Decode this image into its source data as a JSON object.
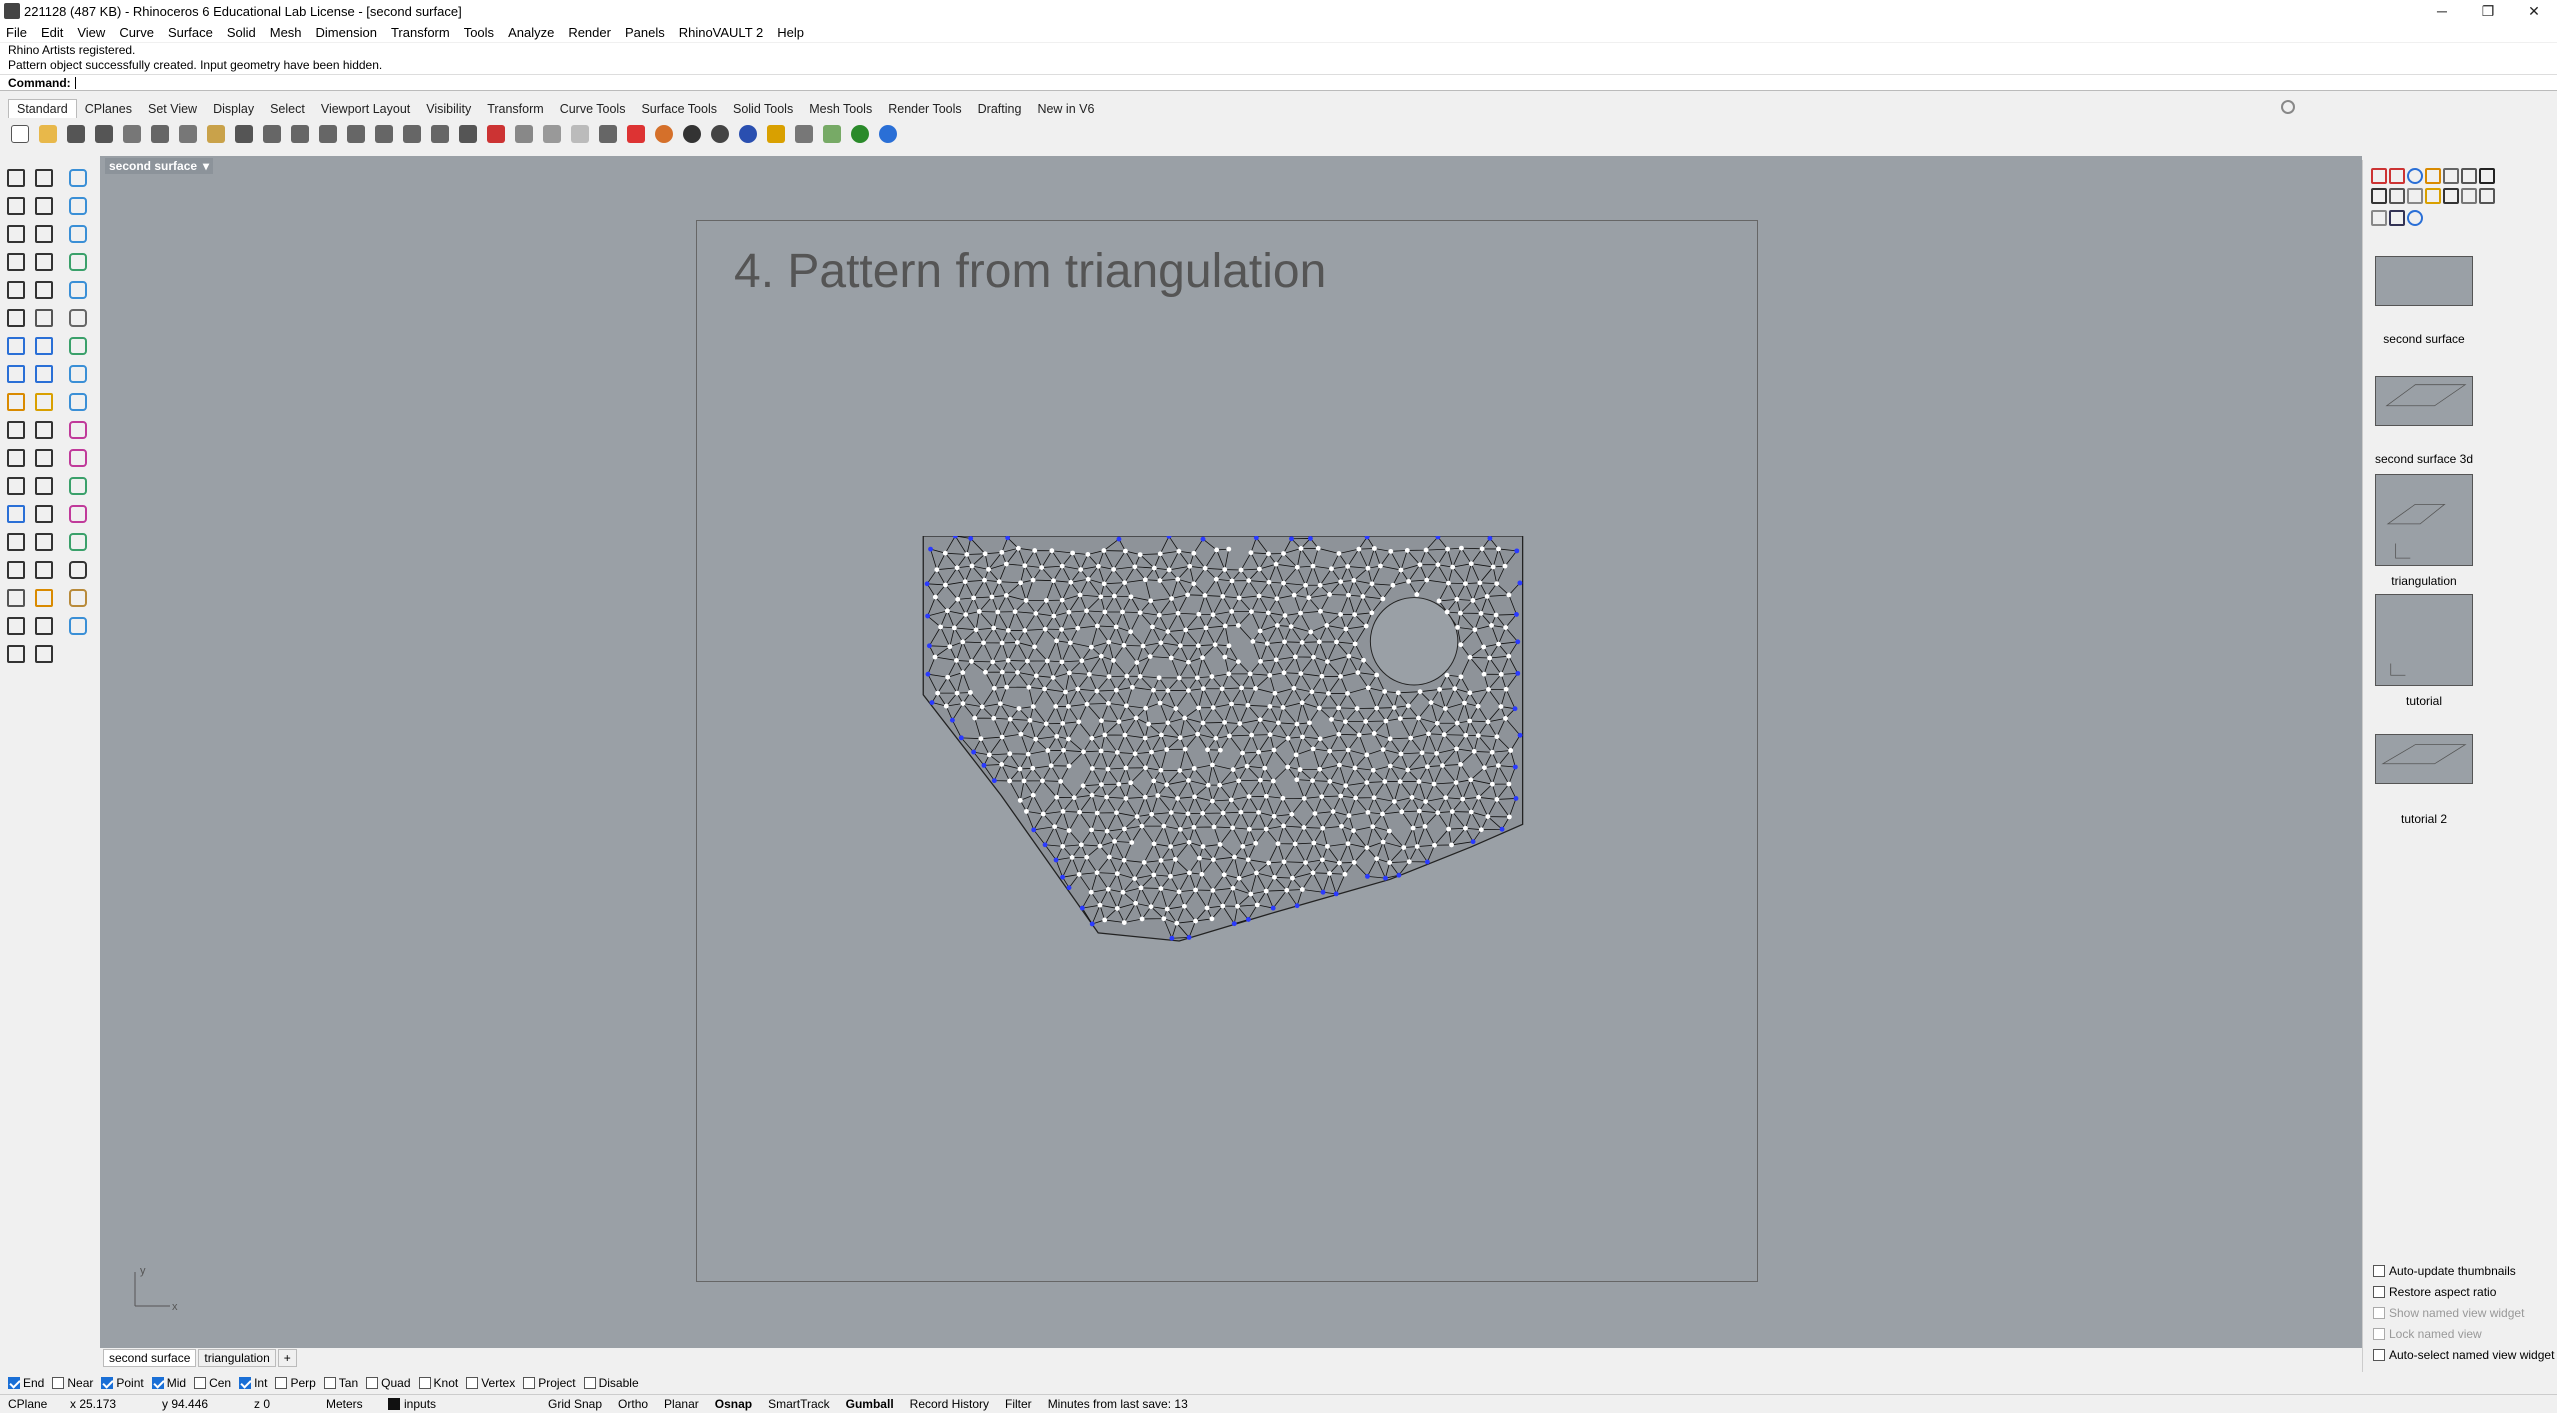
{
  "window": {
    "title": "221128 (487 KB) - Rhinoceros 6 Educational Lab License - [second surface]",
    "controls": [
      "─",
      "❐",
      "✕"
    ]
  },
  "menu": [
    "File",
    "Edit",
    "View",
    "Curve",
    "Surface",
    "Solid",
    "Mesh",
    "Dimension",
    "Transform",
    "Tools",
    "Analyze",
    "Render",
    "Panels",
    "RhinoVAULT 2",
    "Help"
  ],
  "history": [
    "Rhino Artists registered.",
    "Pattern object successfully created. Input geometry have been hidden."
  ],
  "command": {
    "label": "Command:",
    "value": ""
  },
  "toolbar_tabs": [
    "Standard",
    "CPlanes",
    "Set View",
    "Display",
    "Select",
    "Viewport Layout",
    "Visibility",
    "Transform",
    "Curve Tools",
    "Surface Tools",
    "Solid Tools",
    "Mesh Tools",
    "Render Tools",
    "Drafting",
    "New in V6"
  ],
  "toolbar_icons": [
    "new-icon",
    "open-icon",
    "save-icon",
    "print-icon",
    "import-icon",
    "cut-icon",
    "copy-icon",
    "paste-icon",
    "undo-icon",
    "pan-icon",
    "move-view-icon",
    "zoom-icon",
    "zoom-window-icon",
    "zoom-extents-icon",
    "zoom-selected-icon",
    "rotate-view-icon",
    "four-viewports-icon",
    "car-icon",
    "cplane-icon",
    "gear-icon",
    "light-icon",
    "lock-icon",
    "material-icon",
    "color-wheel-icon",
    "shaded-sphere-icon",
    "rendered-sphere-icon",
    "render-sphere-icon",
    "pencil-icon",
    "options-icon",
    "flow-icon",
    "globe-icon",
    "help-icon"
  ],
  "viewport": {
    "name": "second surface",
    "layout_title": "4. Pattern from triangulation",
    "axis_y": "y",
    "axis_x": "x"
  },
  "named_views": [
    {
      "label": "second surface"
    },
    {
      "label": "second surface 3d"
    },
    {
      "label": "triangulation"
    },
    {
      "label": "tutorial"
    },
    {
      "label": "tutorial 2"
    }
  ],
  "panel_options": [
    {
      "label": "Auto-update thumbnails",
      "enabled": true
    },
    {
      "label": "Restore aspect ratio",
      "enabled": true
    },
    {
      "label": "Show named view widget",
      "enabled": false
    },
    {
      "label": "Lock named view",
      "enabled": false
    },
    {
      "label": "Auto-select named view widget",
      "enabled": true
    }
  ],
  "viewport_tabs": [
    "second surface",
    "triangulation",
    "+"
  ],
  "osnaps": [
    {
      "label": "End",
      "on": true
    },
    {
      "label": "Near",
      "on": false
    },
    {
      "label": "Point",
      "on": true
    },
    {
      "label": "Mid",
      "on": true
    },
    {
      "label": "Cen",
      "on": false
    },
    {
      "label": "Int",
      "on": true
    },
    {
      "label": "Perp",
      "on": false
    },
    {
      "label": "Tan",
      "on": false
    },
    {
      "label": "Quad",
      "on": false
    },
    {
      "label": "Knot",
      "on": false
    },
    {
      "label": "Vertex",
      "on": false
    },
    {
      "label": "Project",
      "on": false
    },
    {
      "label": "Disable",
      "on": false
    }
  ],
  "status": {
    "cplane": "CPlane",
    "x": "x 25.173",
    "y": "y 94.446",
    "z": "z 0",
    "units": "Meters",
    "layer": "inputs",
    "grid_snap": "Grid Snap",
    "ortho": "Ortho",
    "planar": "Planar",
    "osnap": "Osnap",
    "smarttrack": "SmartTrack",
    "gumball": "Gumball",
    "record_history": "Record History",
    "filter": "Filter",
    "save_info": "Minutes from last save: 13"
  },
  "colors": {
    "viewport_bg": "#9aa0a6",
    "mesh_fill": "#8e9399",
    "mesh_edge": "#111111",
    "vertex": "#ffffff",
    "boundary_vertex": "#2a3aff",
    "accent": "#1a6fd6"
  }
}
